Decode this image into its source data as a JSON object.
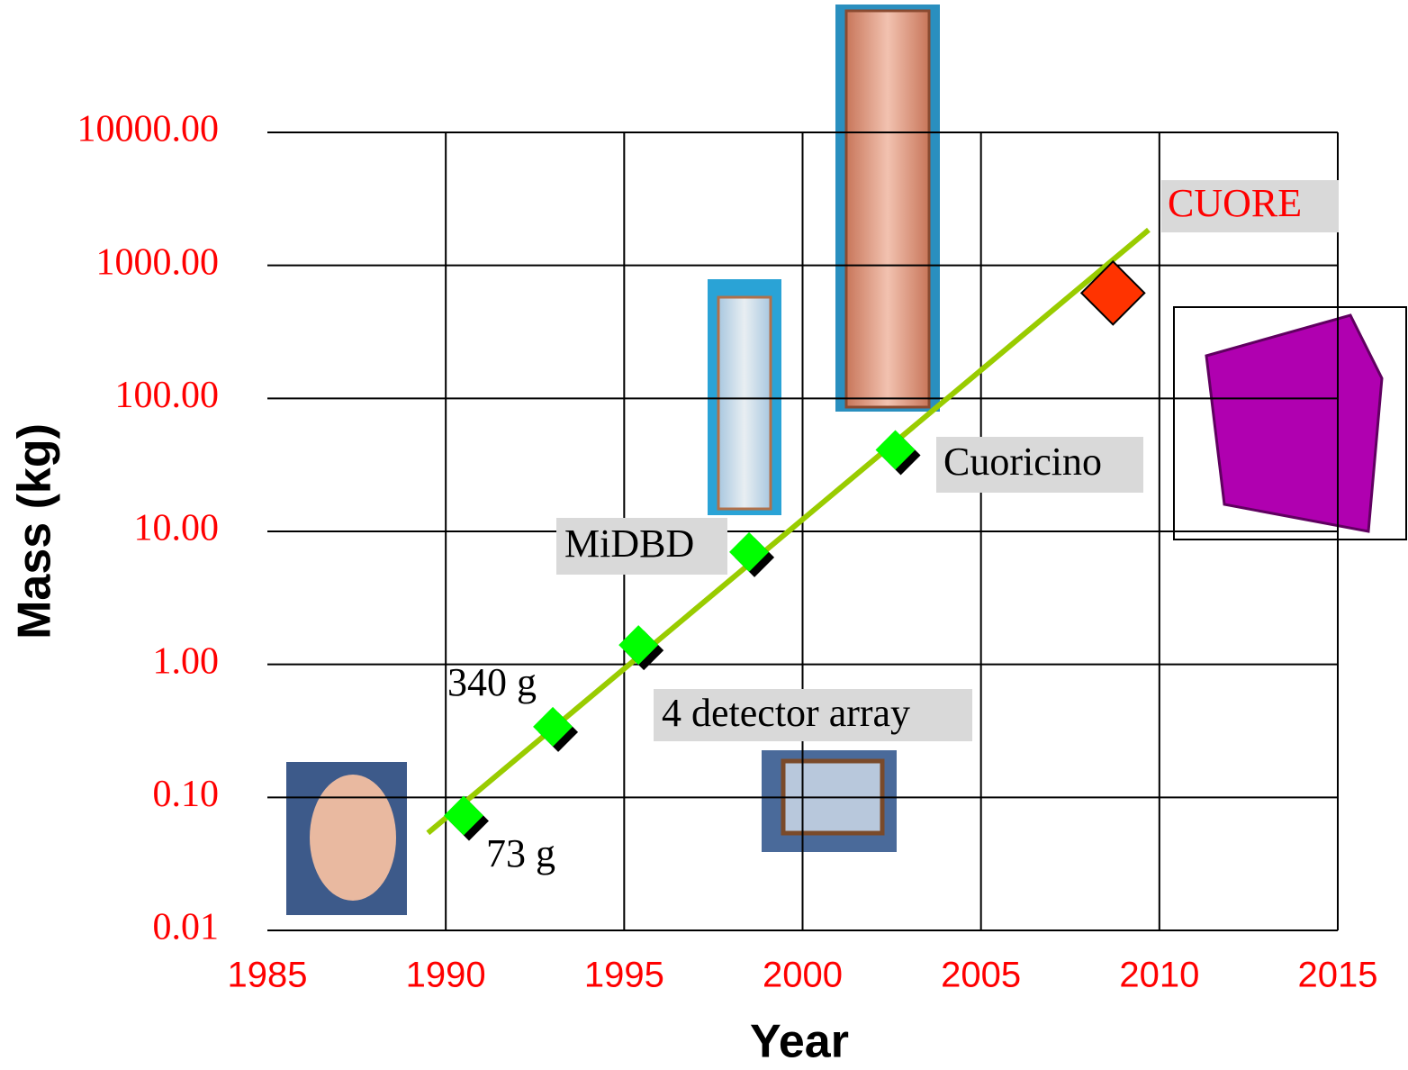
{
  "chart_data": {
    "type": "scatter",
    "xlabel": "Year",
    "ylabel": "Mass (kg)",
    "xlim": [
      1985,
      2015
    ],
    "xticks": [
      1985,
      1990,
      1995,
      2000,
      2005,
      2010,
      2015
    ],
    "ylim": [
      0.01,
      10000
    ],
    "log_y": true,
    "yticks": [
      {
        "value": 0.01,
        "label": "0.01"
      },
      {
        "value": 0.1,
        "label": "0.10"
      },
      {
        "value": 1,
        "label": "1.00"
      },
      {
        "value": 10,
        "label": "10.00"
      },
      {
        "value": 100,
        "label": "100.00"
      },
      {
        "value": 1000,
        "label": "1000.00"
      },
      {
        "value": 10000,
        "label": "10000.00"
      }
    ],
    "grid": true,
    "tick_color": "#ff0000",
    "series": [
      {
        "color": "#00ff00",
        "x": [
          1990.5,
          1993,
          1995.4,
          1998.5,
          2002.6
        ],
        "values": [
          0.073,
          0.34,
          1.4,
          7,
          41
        ]
      },
      {
        "color": "#ff3300",
        "x": [
          2008.7
        ],
        "values": [
          620
        ]
      }
    ],
    "trend": {
      "color": "#99cc00",
      "x": [
        1989.5,
        2009.7
      ],
      "values": [
        0.054,
        1850
      ]
    },
    "annotations": [
      "73 g",
      "340 g",
      "4 detector array",
      "MiDBD",
      "Cuoricino",
      "CUORE"
    ]
  }
}
